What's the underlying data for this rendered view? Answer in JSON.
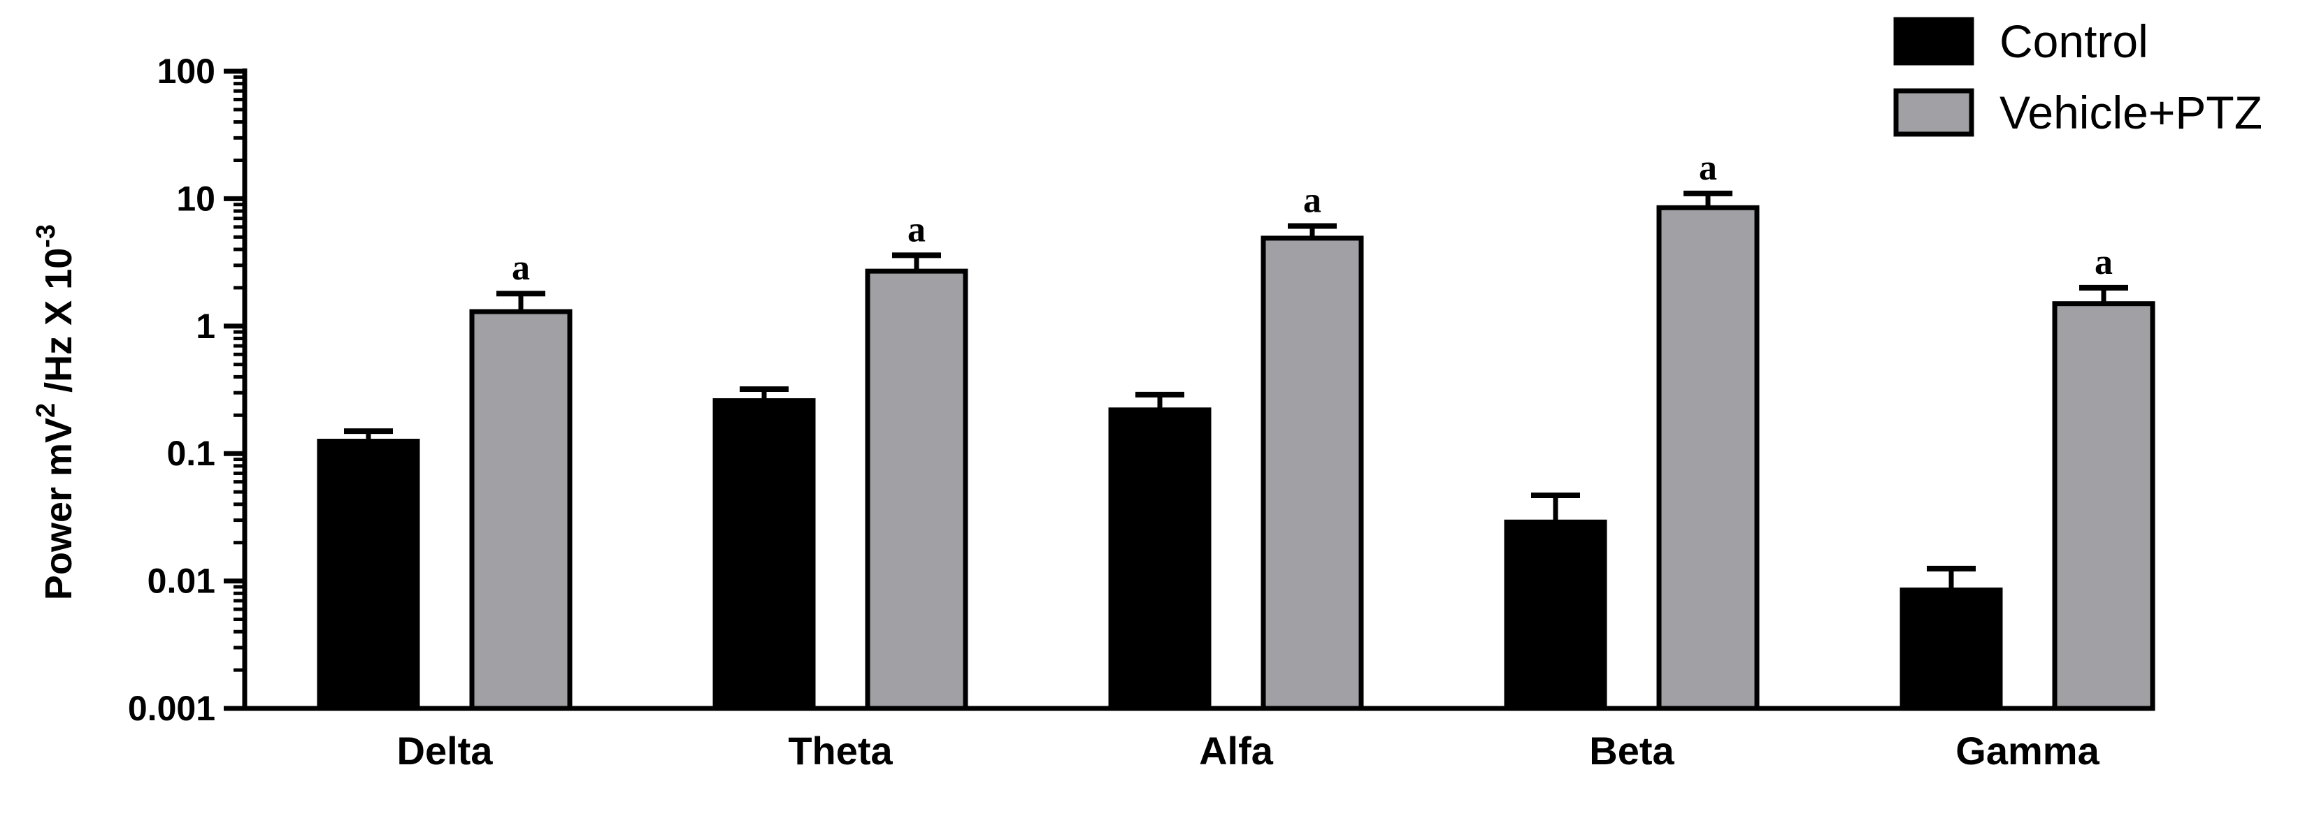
{
  "chart_data": {
    "type": "bar",
    "title": "",
    "xlabel": "",
    "ylabel": {
      "prefix": "Power mV",
      "sup1": "2",
      "middle": " /Hz X 10",
      "sup2": "-3"
    },
    "yscale": "log",
    "ylim": [
      0.001,
      100
    ],
    "yticks": [
      "0.001",
      "0.01",
      "0.1",
      "1",
      "10",
      "100"
    ],
    "ytick_values": [
      0.001,
      0.01,
      0.1,
      1,
      10,
      100
    ],
    "categories": [
      "Delta",
      "Theta",
      "Alfa",
      "Beta",
      "Gamma"
    ],
    "series": [
      {
        "name": "Control",
        "color": "#000000",
        "values": [
          0.125,
          0.26,
          0.22,
          0.029,
          0.0085
        ],
        "error_upper": [
          0.15,
          0.32,
          0.29,
          0.047,
          0.0125
        ],
        "annotations": [
          "",
          "",
          "",
          "",
          ""
        ]
      },
      {
        "name": "Vehicle+PTZ",
        "color": "#a0a0a5",
        "values": [
          1.3,
          2.7,
          4.9,
          8.5,
          1.5
        ],
        "error_upper": [
          1.8,
          3.6,
          6.1,
          11.0,
          2.0
        ],
        "annotations": [
          "a",
          "a",
          "a",
          "a",
          "a"
        ]
      }
    ],
    "grid": false,
    "legend_position": "top-right"
  }
}
